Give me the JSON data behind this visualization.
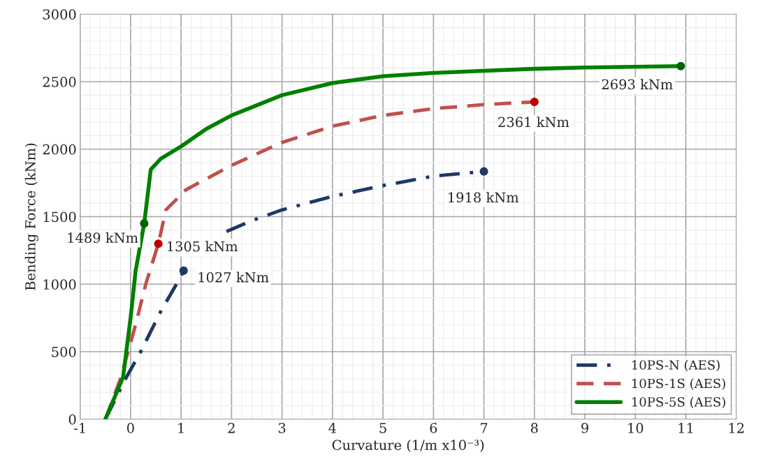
{
  "chart_data": {
    "type": "line",
    "xlabel": "Curvature (1/m x10⁻³)",
    "ylabel": "Bending Force (kNm)",
    "xlim": [
      -1,
      12
    ],
    "xticks": [
      -1,
      0,
      1,
      2,
      3,
      4,
      5,
      6,
      7,
      8,
      9,
      10,
      11,
      12
    ],
    "ylim": [
      0,
      3000
    ],
    "yticks": [
      0,
      500,
      1000,
      1500,
      2000,
      2500,
      3000
    ],
    "grid": true,
    "legend": "bottom right",
    "series": [
      {
        "name": "10PS-N (AES)",
        "color": "#1f3864",
        "line_style": "dashdot",
        "x": [
          -0.5,
          -0.1,
          0.2,
          0.6,
          1.0,
          1.05,
          1.5,
          1.9,
          2.4,
          3,
          4,
          5,
          6,
          7
        ],
        "values": [
          0,
          300,
          500,
          800,
          1060,
          1100,
          null,
          1390,
          1470,
          1550,
          1650,
          1730,
          1800,
          1835
        ]
      },
      {
        "name": "10PS-1S (AES)",
        "color": "#c0504d",
        "line_style": "dashed",
        "x": [
          -0.5,
          -0.2,
          0.1,
          0.3,
          0.55,
          0.7,
          1.1,
          2,
          3,
          4,
          5,
          6,
          7,
          8
        ],
        "values": [
          0,
          300,
          700,
          1000,
          1300,
          1550,
          1700,
          1880,
          2050,
          2170,
          2250,
          2300,
          2330,
          2350
        ]
      },
      {
        "name": "10PS-5S (AES)",
        "color": "#008000",
        "line_style": "solid",
        "x": [
          -0.5,
          -0.15,
          0,
          0.1,
          0.27,
          0.4,
          0.6,
          1,
          1.5,
          2,
          3,
          4,
          5,
          6,
          7,
          8,
          9,
          10.9
        ],
        "values": [
          0,
          310,
          750,
          1100,
          1450,
          1850,
          1930,
          2020,
          2150,
          2250,
          2400,
          2490,
          2540,
          2565,
          2580,
          2595,
          2605,
          2615
        ]
      },
      {
        "type": "scatter",
        "color": "#1f3864",
        "x": [
          1.05,
          7
        ],
        "values": [
          1100,
          1835
        ]
      },
      {
        "type": "scatter",
        "color": "#c00000",
        "x": [
          0.55,
          8
        ],
        "values": [
          1300,
          2350
        ]
      },
      {
        "type": "scatter",
        "color": "#006400",
        "x": [
          0.27,
          10.9
        ],
        "values": [
          1450,
          2615
        ]
      }
    ],
    "annotations": [
      {
        "text": "1027 kNm",
        "x": 1.05,
        "y": 1100
      },
      {
        "text": "1918 kNm",
        "x": 7,
        "y": 1835
      },
      {
        "text": "1305 kNm",
        "x": 0.55,
        "y": 1300
      },
      {
        "text": "2361 kNm",
        "x": 8,
        "y": 2350
      },
      {
        "text": "1489 kNm",
        "x": 0.27,
        "y": 1450
      },
      {
        "text": "2693 kNm",
        "x": 10.9,
        "y": 2615
      }
    ]
  }
}
